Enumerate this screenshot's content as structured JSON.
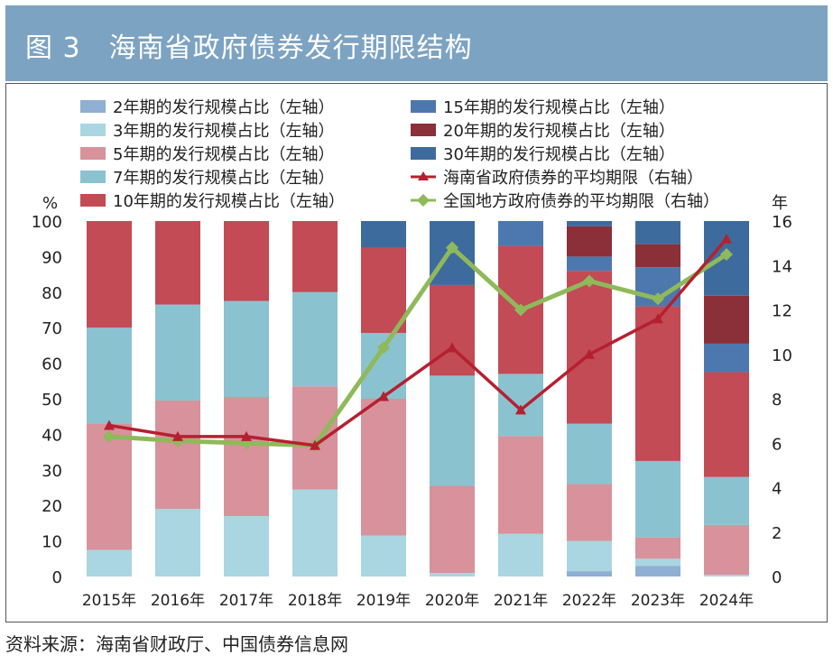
{
  "title": "图 3　海南省政府债券发行期限结构",
  "source": "资料来源：海南省财政厅、中国债券信息网",
  "chart_data": {
    "type": "bar",
    "stacked": true,
    "left_unit": "%",
    "right_unit": "年",
    "categories": [
      "2015年",
      "2016年",
      "2017年",
      "2018年",
      "2019年",
      "2020年",
      "2021年",
      "2022年",
      "2023年",
      "2024年"
    ],
    "ylim": [
      0,
      100
    ],
    "y2lim": [
      0,
      16
    ],
    "yticks": [
      "0",
      "10",
      "20",
      "30",
      "40",
      "50",
      "60",
      "70",
      "80",
      "90",
      "100"
    ],
    "y2ticks": [
      "0",
      "2",
      "4",
      "6",
      "8",
      "10",
      "12",
      "14",
      "16"
    ],
    "series": [
      {
        "name": "2年期的发行规模占比（左轴）",
        "color": "#8fafd3",
        "values": [
          0,
          0,
          0,
          0,
          0,
          0,
          0,
          1.5,
          3,
          0
        ]
      },
      {
        "name": "3年期的发行规模占比（左轴）",
        "color": "#a9d6e0",
        "values": [
          7.5,
          19,
          17,
          24.5,
          11.5,
          1,
          12,
          8.5,
          2,
          0.5
        ]
      },
      {
        "name": "5年期的发行规模占比（左轴）",
        "color": "#d7929b",
        "values": [
          35.5,
          30.5,
          33.5,
          29,
          38.5,
          24.5,
          27.5,
          16,
          6,
          14
        ]
      },
      {
        "name": "7年期的发行规模占比（左轴）",
        "color": "#8bc2d0",
        "values": [
          27,
          27,
          27,
          26.5,
          18.5,
          31,
          17.5,
          17,
          21.5,
          13.5
        ]
      },
      {
        "name": "10年期的发行规模占比（左轴）",
        "color": "#c24b55",
        "values": [
          30,
          23.5,
          22.5,
          20,
          24,
          25.5,
          36,
          43,
          43.5,
          29.5
        ]
      },
      {
        "name": "15年期的发行规模占比（左轴）",
        "color": "#4d78ad",
        "values": [
          0,
          0,
          0,
          0,
          0,
          0,
          7,
          4,
          11,
          8
        ]
      },
      {
        "name": "20年期的发行规模占比（左轴）",
        "color": "#8b2f39",
        "values": [
          0,
          0,
          0,
          0,
          0,
          0,
          0,
          8.5,
          6.5,
          13.5
        ]
      },
      {
        "name": "30年期的发行规模占比（左轴）",
        "color": "#3e6b9e",
        "values": [
          0,
          0,
          0,
          0,
          7.5,
          18,
          0,
          1.5,
          6.5,
          21
        ]
      }
    ],
    "lines": [
      {
        "name": "海南省政府债券的平均期限（右轴）",
        "color": "#b52030",
        "marker": "triangle",
        "values": [
          6.8,
          6.3,
          6.3,
          5.9,
          8.1,
          10.3,
          7.5,
          10.0,
          11.6,
          15.2
        ]
      },
      {
        "name": "全国地方政府债券的平均期限（右轴）",
        "color": "#8fb95a",
        "marker": "diamond",
        "values": [
          6.3,
          6.1,
          6.0,
          5.9,
          10.3,
          14.8,
          12.0,
          13.3,
          12.5,
          14.5
        ]
      }
    ]
  }
}
